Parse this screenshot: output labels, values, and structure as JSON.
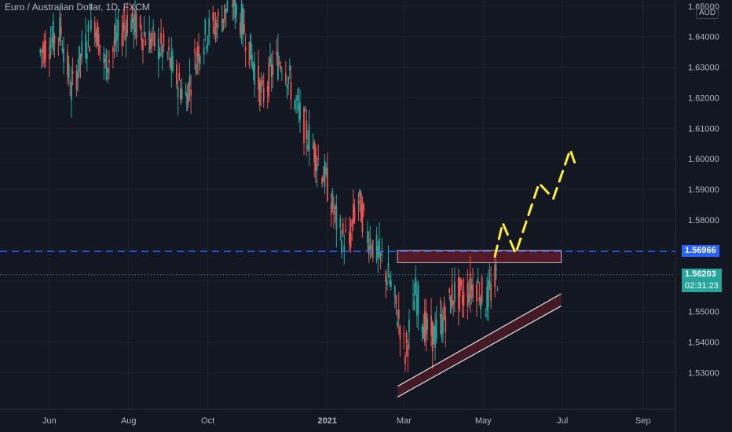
{
  "title": "Euro / Australian Dollar, 1D, FXCM",
  "currency": "AUD",
  "colors": {
    "background": "#131722",
    "up": "#26a69a",
    "down": "#ef5350",
    "dashed_line": "#2962ff",
    "current_tag": "#26a69a",
    "zone_fill": "#6b1b2a",
    "arrow": "#ffeb3b"
  },
  "chart_data": {
    "type": "candlestick",
    "title": "Euro / Australian Dollar, 1D, FXCM",
    "y_ticks": [
      "1.53000",
      "1.54000",
      "1.55000",
      "1.56000",
      "1.57000",
      "1.58000",
      "1.59000",
      "1.60000",
      "1.61000",
      "1.62000",
      "1.63000",
      "1.64000",
      "1.65000"
    ],
    "y_tick_values": [
      1.53,
      1.54,
      1.55,
      1.56,
      1.57,
      1.58,
      1.59,
      1.6,
      1.61,
      1.62,
      1.63,
      1.64,
      1.65
    ],
    "ylim": [
      1.518,
      1.652
    ],
    "x_ticks": [
      "Jun",
      "Aug",
      "Oct",
      "2021",
      "Mar",
      "May",
      "Jul",
      "Sep"
    ],
    "x_tick_dates": [
      "2020-06-01",
      "2020-08-01",
      "2020-10-01",
      "2021-01-01",
      "2021-03-01",
      "2021-05-01",
      "2021-07-01",
      "2021-09-01"
    ],
    "xlim": [
      "2020-04-24",
      "2021-09-26"
    ],
    "horizontal_line": {
      "value": 1.56966,
      "label": "1.56966",
      "style": "dashed"
    },
    "current_price": {
      "value": 1.56203,
      "label": "1.56203",
      "countdown": "02:31:23"
    },
    "resistance_zone": {
      "start": "2021-02-24",
      "end": "2021-06-30",
      "top": 1.57,
      "bottom": 1.566
    },
    "rising_channel": {
      "start": "2021-02-24",
      "end": "2021-06-30",
      "lower_start": 1.522,
      "lower_end": 1.5518,
      "upper_start": 1.5255,
      "upper_end": 1.5558
    },
    "arrow_path": [
      {
        "date": "2021-05-10",
        "price": 1.568
      },
      {
        "date": "2021-05-16",
        "price": 1.579
      },
      {
        "date": "2021-05-26",
        "price": 1.569
      },
      {
        "date": "2021-06-13",
        "price": 1.592
      },
      {
        "date": "2021-06-24",
        "price": 1.587
      },
      {
        "date": "2021-07-07",
        "price": 1.603
      },
      {
        "date": "2021-07-11",
        "price": 1.598
      }
    ],
    "series_anchors": [
      [
        "2020-05-25",
        1.635
      ],
      [
        "2020-06-01",
        1.638
      ],
      [
        "2020-06-10",
        1.642
      ],
      [
        "2020-06-18",
        1.622
      ],
      [
        "2020-06-25",
        1.633
      ],
      [
        "2020-07-06",
        1.645
      ],
      [
        "2020-07-14",
        1.63
      ],
      [
        "2020-07-22",
        1.638
      ],
      [
        "2020-08-01",
        1.646
      ],
      [
        "2020-08-10",
        1.642
      ],
      [
        "2020-08-20",
        1.638
      ],
      [
        "2020-08-30",
        1.635
      ],
      [
        "2020-09-05",
        1.628
      ],
      [
        "2020-09-14",
        1.62
      ],
      [
        "2020-09-23",
        1.635
      ],
      [
        "2020-10-01",
        1.642
      ],
      [
        "2020-10-10",
        1.645
      ],
      [
        "2020-10-20",
        1.652
      ],
      [
        "2020-10-28",
        1.644
      ],
      [
        "2020-11-03",
        1.635
      ],
      [
        "2020-11-12",
        1.62
      ],
      [
        "2020-11-20",
        1.63
      ],
      [
        "2020-11-28",
        1.633
      ],
      [
        "2020-12-03",
        1.625
      ],
      [
        "2020-12-10",
        1.615
      ],
      [
        "2020-12-20",
        1.605
      ],
      [
        "2020-12-31",
        1.593
      ],
      [
        "2021-01-10",
        1.576
      ],
      [
        "2021-01-18",
        1.572
      ],
      [
        "2021-01-24",
        1.588
      ],
      [
        "2021-02-01",
        1.575
      ],
      [
        "2021-02-10",
        1.568
      ],
      [
        "2021-02-18",
        1.56
      ],
      [
        "2021-02-26",
        1.546
      ],
      [
        "2021-03-02",
        1.536
      ],
      [
        "2021-03-10",
        1.556
      ],
      [
        "2021-03-18",
        1.544
      ],
      [
        "2021-03-25",
        1.542
      ],
      [
        "2021-04-01",
        1.548
      ],
      [
        "2021-04-08",
        1.556
      ],
      [
        "2021-04-16",
        1.555
      ],
      [
        "2021-04-25",
        1.56
      ],
      [
        "2021-05-03",
        1.553
      ],
      [
        "2021-05-12",
        1.562
      ]
    ]
  }
}
